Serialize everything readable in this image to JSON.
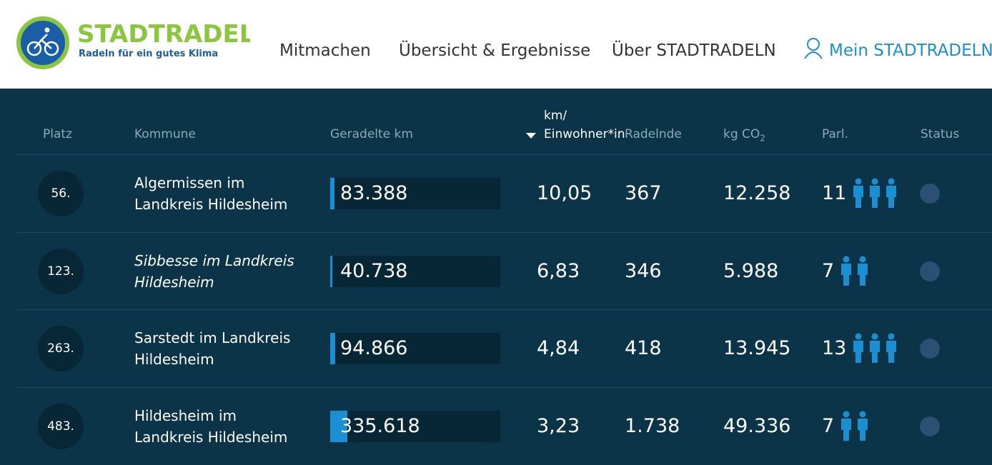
{
  "header": {
    "logo_title": "STADTRADELN",
    "logo_subtitle": "Radeln für ein gutes Klima",
    "nav": [
      "Mitmachen",
      "Übersicht & Ergebnisse",
      "Über STADTRADELN"
    ],
    "account": "Mein STADTRADELN"
  },
  "table": {
    "columns": {
      "rank": "Platz",
      "name": "Kommune",
      "km": "Geradelte km",
      "per_inhabitant": [
        "km/",
        "Einwohner*in"
      ],
      "cyclists": "Radelnde",
      "co2": {
        "text": "kg CO",
        "sub": "2"
      },
      "parl": "Parl.",
      "status": "Status"
    },
    "rows": [
      {
        "rank": "56.",
        "name": "Algermissen im Landkreis Hildesheim",
        "italic": false,
        "km": {
          "value": 83388,
          "label": "83.388"
        },
        "per_inhabitant": "10,05",
        "cyclists": "367",
        "co2": "12.258",
        "parl": 11
      },
      {
        "rank": "123.",
        "name": "Sibbesse im Landkreis Hildesheim",
        "italic": true,
        "km": {
          "value": 40738,
          "label": "40.738"
        },
        "per_inhabitant": "6,83",
        "cyclists": "346",
        "co2": "5.988",
        "parl": 7
      },
      {
        "rank": "263.",
        "name": "Sarstedt im Landkreis Hildesheim",
        "italic": false,
        "km": {
          "value": 94866,
          "label": "94.866"
        },
        "per_inhabitant": "4,84",
        "cyclists": "418",
        "co2": "13.945",
        "parl": 13
      },
      {
        "rank": "483.",
        "name": "Hildesheim im Landkreis Hildesheim",
        "italic": false,
        "km": {
          "value": 335618,
          "label": "335.618"
        },
        "per_inhabitant": "3,23",
        "cyclists": "1.738",
        "co2": "49.336",
        "parl": 7
      }
    ]
  }
}
